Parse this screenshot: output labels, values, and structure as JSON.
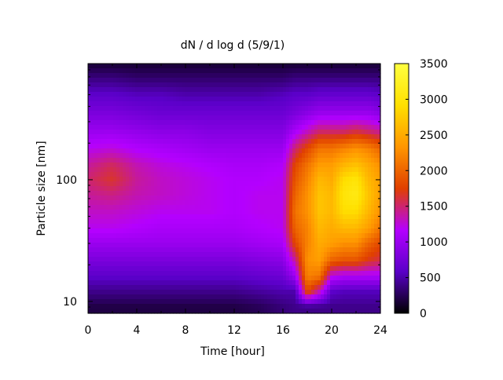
{
  "chart_data": {
    "type": "heatmap",
    "title": "dN / d log d (5/9/1)",
    "xlabel": "Time [hour]",
    "ylabel": "Particle size [nm]",
    "x_range": [
      0,
      24
    ],
    "y_range": [
      8,
      900
    ],
    "y_scale": "log",
    "x_ticks": [
      "0",
      "4",
      "8",
      "12",
      "16",
      "20",
      "24"
    ],
    "y_ticks": [
      "10",
      "100"
    ],
    "colorbar": {
      "range": [
        0,
        3500
      ],
      "ticks": [
        "0",
        "500",
        "1000",
        "1500",
        "2000",
        "2500",
        "3000",
        "3500"
      ],
      "palette": [
        "#000000",
        "#5a00c8",
        "#b400ff",
        "#e04000",
        "#ff9600",
        "#ffe000",
        "#ffff40"
      ]
    },
    "grid": false,
    "x_hours": [
      0,
      2,
      4,
      6,
      8,
      10,
      12,
      14,
      16,
      17,
      18,
      19,
      20,
      21,
      22,
      23,
      24
    ],
    "y_sizes_nm": [
      9,
      12,
      16,
      22,
      30,
      40,
      55,
      75,
      100,
      130,
      180,
      250,
      350,
      500,
      700,
      900
    ],
    "z": [
      [
        200,
        200,
        200,
        200,
        200,
        200,
        200,
        250,
        350,
        400,
        400,
        400,
        400,
        400,
        400,
        400,
        400
      ],
      [
        400,
        400,
        400,
        400,
        400,
        400,
        400,
        450,
        500,
        500,
        1800,
        1300,
        600,
        550,
        550,
        550,
        550
      ],
      [
        600,
        600,
        600,
        600,
        600,
        600,
        600,
        650,
        700,
        1000,
        2200,
        2100,
        1200,
        1100,
        1100,
        1100,
        1100
      ],
      [
        800,
        800,
        800,
        800,
        800,
        800,
        800,
        850,
        900,
        1400,
        2300,
        2400,
        2000,
        1900,
        1900,
        1700,
        1600
      ],
      [
        1000,
        1000,
        1000,
        1000,
        1000,
        1000,
        1000,
        1050,
        1100,
        1800,
        2200,
        2500,
        2400,
        2300,
        2300,
        2000,
        1800
      ],
      [
        1200,
        1200,
        1150,
        1100,
        1100,
        1100,
        1100,
        1150,
        1200,
        2000,
        2200,
        2600,
        2500,
        2600,
        2600,
        2400,
        2100
      ],
      [
        1300,
        1300,
        1250,
        1200,
        1200,
        1200,
        1150,
        1200,
        1200,
        2100,
        2300,
        2700,
        2600,
        2900,
        2900,
        2600,
        2300
      ],
      [
        1400,
        1450,
        1350,
        1300,
        1250,
        1200,
        1150,
        1200,
        1200,
        2000,
        2300,
        2700,
        2600,
        3000,
        3100,
        2700,
        2400
      ],
      [
        1500,
        1650,
        1400,
        1300,
        1250,
        1200,
        1150,
        1150,
        1200,
        1900,
        2200,
        2600,
        2500,
        2900,
        3000,
        2600,
        2400
      ],
      [
        1400,
        1550,
        1350,
        1250,
        1200,
        1150,
        1100,
        1100,
        1150,
        1800,
        2100,
        2400,
        2400,
        2600,
        2700,
        2500,
        2300
      ],
      [
        1200,
        1250,
        1150,
        1100,
        1050,
        1000,
        1000,
        1000,
        1000,
        1500,
        1800,
        2100,
        2100,
        2200,
        2300,
        2200,
        2000
      ],
      [
        1000,
        1000,
        950,
        900,
        900,
        850,
        850,
        850,
        850,
        1100,
        1300,
        1500,
        1500,
        1500,
        1600,
        1500,
        1400
      ],
      [
        800,
        800,
        750,
        700,
        700,
        700,
        700,
        700,
        700,
        800,
        900,
        1000,
        1000,
        1000,
        1000,
        1000,
        900
      ],
      [
        600,
        600,
        550,
        550,
        500,
        500,
        500,
        500,
        550,
        600,
        600,
        650,
        650,
        650,
        650,
        650,
        600
      ],
      [
        350,
        350,
        300,
        300,
        300,
        300,
        300,
        300,
        300,
        350,
        350,
        350,
        350,
        350,
        350,
        350,
        350
      ],
      [
        150,
        150,
        150,
        150,
        150,
        150,
        150,
        150,
        150,
        150,
        150,
        150,
        150,
        150,
        150,
        150,
        150
      ]
    ]
  }
}
